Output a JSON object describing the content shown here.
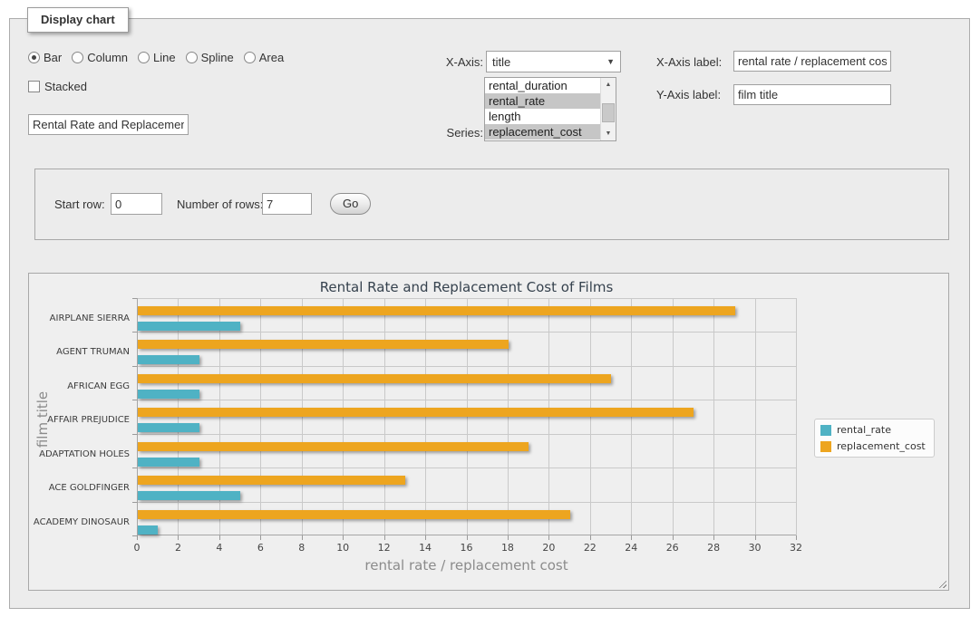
{
  "panel": {
    "legend": "Display chart"
  },
  "chart_type_options": [
    {
      "label": "Bar",
      "selected": true
    },
    {
      "label": "Column",
      "selected": false
    },
    {
      "label": "Line",
      "selected": false
    },
    {
      "label": "Spline",
      "selected": false
    },
    {
      "label": "Area",
      "selected": false
    }
  ],
  "stacked": {
    "label": "Stacked",
    "checked": false
  },
  "title_input": {
    "value": "Rental Rate and Replacement Cost of Films"
  },
  "x_axis": {
    "label": "X-Axis:",
    "selected": "title"
  },
  "series_select": {
    "label": "Series:",
    "options": [
      {
        "label": "rental_duration",
        "selected": false
      },
      {
        "label": "rental_rate",
        "selected": true
      },
      {
        "label": "length",
        "selected": false
      },
      {
        "label": "replacement_cost",
        "selected": true
      }
    ]
  },
  "x_axis_label": {
    "label": "X-Axis label:",
    "value": "rental rate / replacement cost"
  },
  "y_axis_label": {
    "label": "Y-Axis label:",
    "value": "film title"
  },
  "row_controls": {
    "start_row_label": "Start row:",
    "start_row_value": "0",
    "num_rows_label": "Number of rows:",
    "num_rows_value": "7",
    "go_label": "Go"
  },
  "chart_data": {
    "type": "bar",
    "title": "Rental Rate and Replacement Cost of Films",
    "categories": [
      "AIRPLANE SIERRA",
      "AGENT TRUMAN",
      "AFRICAN EGG",
      "AFFAIR PREJUDICE",
      "ADAPTATION HOLES",
      "ACE GOLDFINGER",
      "ACADEMY DINOSAUR"
    ],
    "series": [
      {
        "name": "rental_rate",
        "color": "#4fb2c4",
        "values": [
          4.99,
          2.99,
          2.99,
          2.99,
          2.99,
          4.99,
          0.99
        ]
      },
      {
        "name": "replacement_cost",
        "color": "#eda51f",
        "values": [
          28.99,
          17.99,
          22.99,
          26.99,
          18.99,
          12.99,
          20.99
        ]
      }
    ],
    "bar_draw_order": [
      "replacement_cost",
      "rental_rate"
    ],
    "xlabel": "rental rate / replacement cost",
    "ylabel": "film title",
    "xlim": [
      0,
      32
    ],
    "x_tick_step": 2,
    "grid": true,
    "legend_position": "right"
  }
}
